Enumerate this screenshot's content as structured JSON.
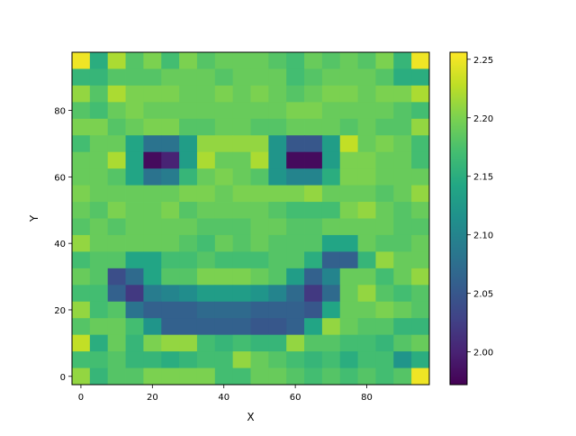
{
  "chart_data": {
    "type": "heatmap",
    "title": "",
    "xlabel": "X",
    "ylabel": "Y",
    "colormap": "viridis",
    "cell_size": 5,
    "x_ticks": [
      0,
      20,
      40,
      60,
      80
    ],
    "y_ticks": [
      0,
      20,
      40,
      60,
      80
    ],
    "xlim": [
      -2.5,
      97.5
    ],
    "ylim": [
      -2.5,
      97.5
    ],
    "colorbar": {
      "vmin": 1.972,
      "vmax": 2.256,
      "ticks": [
        2.0,
        2.05,
        2.1,
        2.15,
        2.2,
        2.25
      ],
      "tick_labels": [
        "2.00",
        "2.05",
        "2.10",
        "2.15",
        "2.20",
        "2.25"
      ]
    },
    "grid_rows_top_to_bottom": [
      [
        2.25,
        2.15,
        2.22,
        2.18,
        2.2,
        2.17,
        2.2,
        2.18,
        2.19,
        2.19,
        2.19,
        2.18,
        2.17,
        2.19,
        2.18,
        2.19,
        2.18,
        2.2,
        2.16,
        2.25
      ],
      [
        2.16,
        2.16,
        2.18,
        2.18,
        2.18,
        2.19,
        2.19,
        2.19,
        2.18,
        2.19,
        2.19,
        2.19,
        2.17,
        2.18,
        2.19,
        2.19,
        2.19,
        2.18,
        2.15,
        2.15
      ],
      [
        2.21,
        2.18,
        2.22,
        2.2,
        2.2,
        2.2,
        2.19,
        2.19,
        2.2,
        2.19,
        2.2,
        2.19,
        2.18,
        2.19,
        2.2,
        2.2,
        2.19,
        2.2,
        2.2,
        2.22
      ],
      [
        2.18,
        2.17,
        2.19,
        2.2,
        2.19,
        2.19,
        2.19,
        2.19,
        2.19,
        2.19,
        2.19,
        2.19,
        2.2,
        2.2,
        2.19,
        2.19,
        2.19,
        2.19,
        2.18,
        2.17
      ],
      [
        2.2,
        2.2,
        2.18,
        2.19,
        2.2,
        2.2,
        2.18,
        2.18,
        2.19,
        2.19,
        2.18,
        2.18,
        2.19,
        2.19,
        2.19,
        2.18,
        2.19,
        2.18,
        2.18,
        2.21
      ],
      [
        2.17,
        2.19,
        2.19,
        2.14,
        2.08,
        2.08,
        2.13,
        2.21,
        2.21,
        2.21,
        2.21,
        2.12,
        2.05,
        2.05,
        2.13,
        2.23,
        2.19,
        2.2,
        2.19,
        2.17
      ],
      [
        2.19,
        2.19,
        2.22,
        2.14,
        1.98,
        2.0,
        2.13,
        2.22,
        2.19,
        2.19,
        2.22,
        2.12,
        1.98,
        1.98,
        2.13,
        2.2,
        2.2,
        2.19,
        2.19,
        2.17
      ],
      [
        2.19,
        2.19,
        2.18,
        2.14,
        2.08,
        2.09,
        2.16,
        2.19,
        2.2,
        2.19,
        2.18,
        2.12,
        2.1,
        2.1,
        2.15,
        2.2,
        2.2,
        2.19,
        2.19,
        2.19
      ],
      [
        2.2,
        2.19,
        2.19,
        2.19,
        2.19,
        2.19,
        2.2,
        2.2,
        2.19,
        2.2,
        2.2,
        2.2,
        2.2,
        2.21,
        2.19,
        2.19,
        2.19,
        2.18,
        2.19,
        2.21
      ],
      [
        2.19,
        2.18,
        2.2,
        2.19,
        2.19,
        2.2,
        2.18,
        2.19,
        2.19,
        2.19,
        2.19,
        2.18,
        2.17,
        2.17,
        2.17,
        2.2,
        2.21,
        2.19,
        2.18,
        2.19
      ],
      [
        2.18,
        2.19,
        2.18,
        2.19,
        2.19,
        2.19,
        2.19,
        2.18,
        2.18,
        2.18,
        2.19,
        2.19,
        2.18,
        2.18,
        2.19,
        2.19,
        2.19,
        2.19,
        2.18,
        2.18
      ],
      [
        2.21,
        2.19,
        2.19,
        2.19,
        2.19,
        2.19,
        2.18,
        2.17,
        2.19,
        2.18,
        2.19,
        2.18,
        2.18,
        2.18,
        2.14,
        2.14,
        2.19,
        2.18,
        2.18,
        2.19
      ],
      [
        2.17,
        2.18,
        2.18,
        2.14,
        2.14,
        2.17,
        2.17,
        2.18,
        2.17,
        2.17,
        2.17,
        2.18,
        2.18,
        2.15,
        2.06,
        2.06,
        2.16,
        2.21,
        2.19,
        2.19
      ],
      [
        2.19,
        2.18,
        2.04,
        2.07,
        2.14,
        2.18,
        2.18,
        2.2,
        2.2,
        2.2,
        2.19,
        2.18,
        2.13,
        2.06,
        2.1,
        2.19,
        2.19,
        2.17,
        2.19,
        2.21
      ],
      [
        2.17,
        2.17,
        2.06,
        2.02,
        2.09,
        2.1,
        2.11,
        2.13,
        2.13,
        2.13,
        2.12,
        2.1,
        2.07,
        2.02,
        2.07,
        2.19,
        2.21,
        2.18,
        2.17,
        2.18
      ],
      [
        2.21,
        2.17,
        2.18,
        2.08,
        2.06,
        2.06,
        2.06,
        2.07,
        2.07,
        2.07,
        2.06,
        2.06,
        2.06,
        2.05,
        2.14,
        2.19,
        2.19,
        2.2,
        2.19,
        2.18
      ],
      [
        2.18,
        2.19,
        2.19,
        2.17,
        2.12,
        2.06,
        2.06,
        2.06,
        2.06,
        2.06,
        2.05,
        2.05,
        2.06,
        2.14,
        2.21,
        2.19,
        2.18,
        2.18,
        2.16,
        2.16
      ],
      [
        2.23,
        2.15,
        2.19,
        2.16,
        2.2,
        2.21,
        2.21,
        2.17,
        2.16,
        2.17,
        2.16,
        2.16,
        2.21,
        2.18,
        2.18,
        2.17,
        2.17,
        2.16,
        2.18,
        2.19
      ],
      [
        2.17,
        2.17,
        2.18,
        2.16,
        2.16,
        2.15,
        2.16,
        2.17,
        2.17,
        2.21,
        2.19,
        2.18,
        2.17,
        2.16,
        2.17,
        2.15,
        2.17,
        2.17,
        2.12,
        2.15
      ],
      [
        2.21,
        2.16,
        2.18,
        2.18,
        2.2,
        2.2,
        2.2,
        2.2,
        2.17,
        2.17,
        2.19,
        2.19,
        2.18,
        2.17,
        2.18,
        2.17,
        2.18,
        2.17,
        2.18,
        2.25
      ]
    ]
  }
}
